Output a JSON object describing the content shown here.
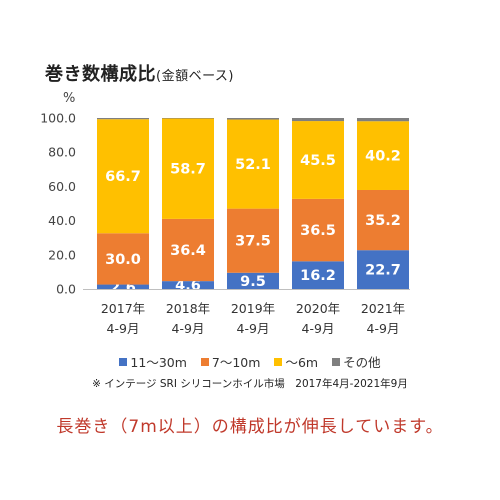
{
  "chart_data": {
    "type": "bar",
    "stacked": true,
    "title": "巻き数構成比",
    "subtitle": "(金額ベース)",
    "unit_label": "%",
    "categories": [
      "2017年\n4-9月",
      "2018年\n4-9月",
      "2019年\n4-9月",
      "2020年\n4-9月",
      "2021年\n4-9月"
    ],
    "ylim": [
      0,
      100
    ],
    "yticks": [
      "0.0",
      "20.0",
      "40.0",
      "60.0",
      "80.0",
      "100.0"
    ],
    "grid": false,
    "legend_position": "bottom",
    "series": [
      {
        "name": "11～30m",
        "color": "#4472C4",
        "values": [
          2.6,
          4.6,
          9.5,
          16.2,
          22.7
        ],
        "labels": [
          "2.6",
          "4.6",
          "9.5",
          "16.2",
          "22.7"
        ]
      },
      {
        "name": "7～10m",
        "color": "#ED7D31",
        "values": [
          30.0,
          36.4,
          37.5,
          36.5,
          35.2
        ],
        "labels": [
          "30.0",
          "36.4",
          "37.5",
          "36.5",
          "35.2"
        ]
      },
      {
        "name": "～6m",
        "color": "#FFC000",
        "values": [
          66.7,
          58.7,
          52.1,
          45.5,
          40.2
        ],
        "labels": [
          "66.7",
          "58.7",
          "52.1",
          "45.5",
          "40.2"
        ]
      },
      {
        "name": "その他",
        "color": "#7F7F7F",
        "values": [
          0.7,
          0.3,
          0.9,
          1.8,
          1.9
        ],
        "labels": [
          "",
          "",
          "",
          "",
          ""
        ]
      }
    ]
  },
  "source_note": "※ インテージ SRI シリコーンホイル市場　2017年4月-2021年9月",
  "caption": "長巻き（7m以上）の構成比が伸長しています。"
}
